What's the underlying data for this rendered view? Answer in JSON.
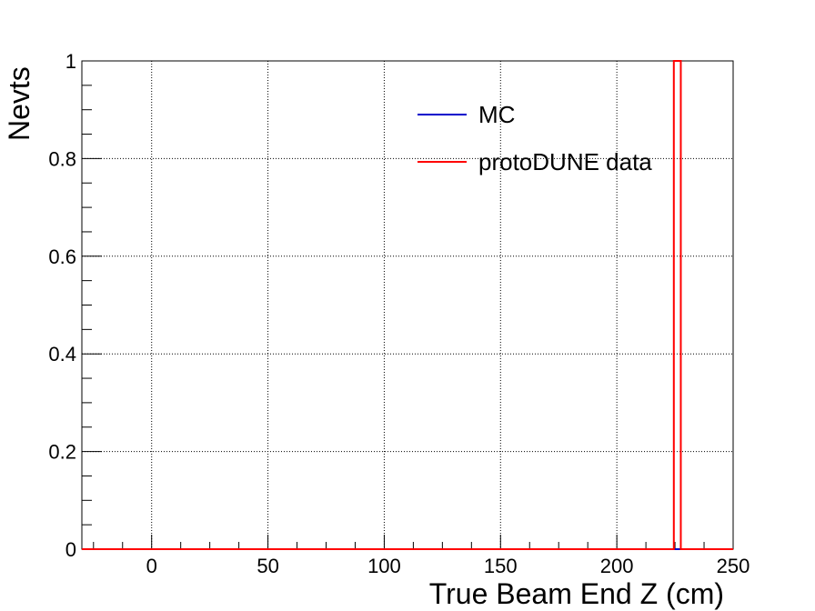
{
  "chart_data": {
    "type": "histogram",
    "title": "",
    "xlabel": "True Beam End Z (cm)",
    "ylabel": "Nevts",
    "xlim": [
      -30,
      250
    ],
    "ylim": [
      0,
      1
    ],
    "x_ticks": [
      0,
      50,
      100,
      150,
      200,
      250
    ],
    "x_tick_labels": [
      "0",
      "50",
      "100",
      "150",
      "200",
      "250"
    ],
    "y_ticks": [
      0,
      0.2,
      0.4,
      0.6,
      0.8,
      1
    ],
    "y_tick_labels": [
      "0",
      "0.2",
      "0.4",
      "0.6",
      "0.8",
      "1"
    ],
    "grid": true,
    "legend_position": "top-right",
    "series": [
      {
        "name": "MC",
        "color": "#0000cc",
        "bins": []
      },
      {
        "name": "protoDUNE data",
        "color": "#ff0000",
        "bins": [
          {
            "x_low": 224.5,
            "x_high": 227.5,
            "value": 1
          }
        ]
      }
    ]
  }
}
